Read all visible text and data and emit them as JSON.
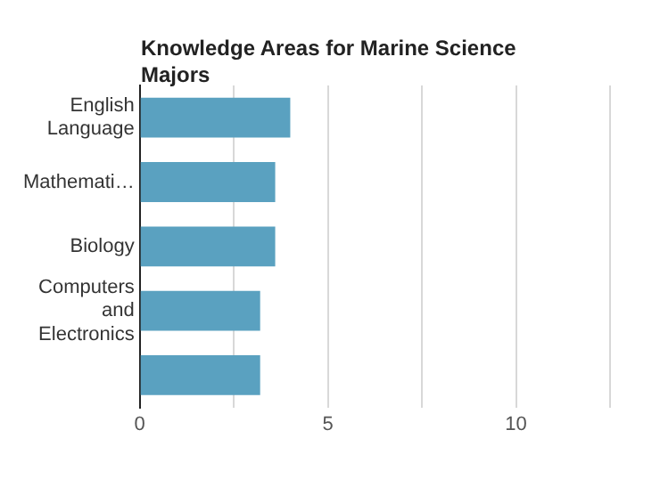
{
  "chart_data": {
    "type": "bar",
    "orientation": "horizontal",
    "title": "Knowledge Areas for Marine Science Majors",
    "categories": [
      "English Language",
      "Mathemati…",
      "Biology",
      "Computers and Electronics",
      null
    ],
    "values": [
      4.0,
      3.6,
      3.6,
      3.2,
      3.2
    ],
    "color": "#5aa1c0",
    "xlim": [
      0,
      12.5
    ],
    "xticks": [
      0,
      {
        "value": 2.5,
        "label": null
      },
      5,
      {
        "value": 7.5,
        "label": null
      },
      10,
      {
        "value": 12.5,
        "label": null
      }
    ],
    "grid": "x",
    "legend": false
  }
}
